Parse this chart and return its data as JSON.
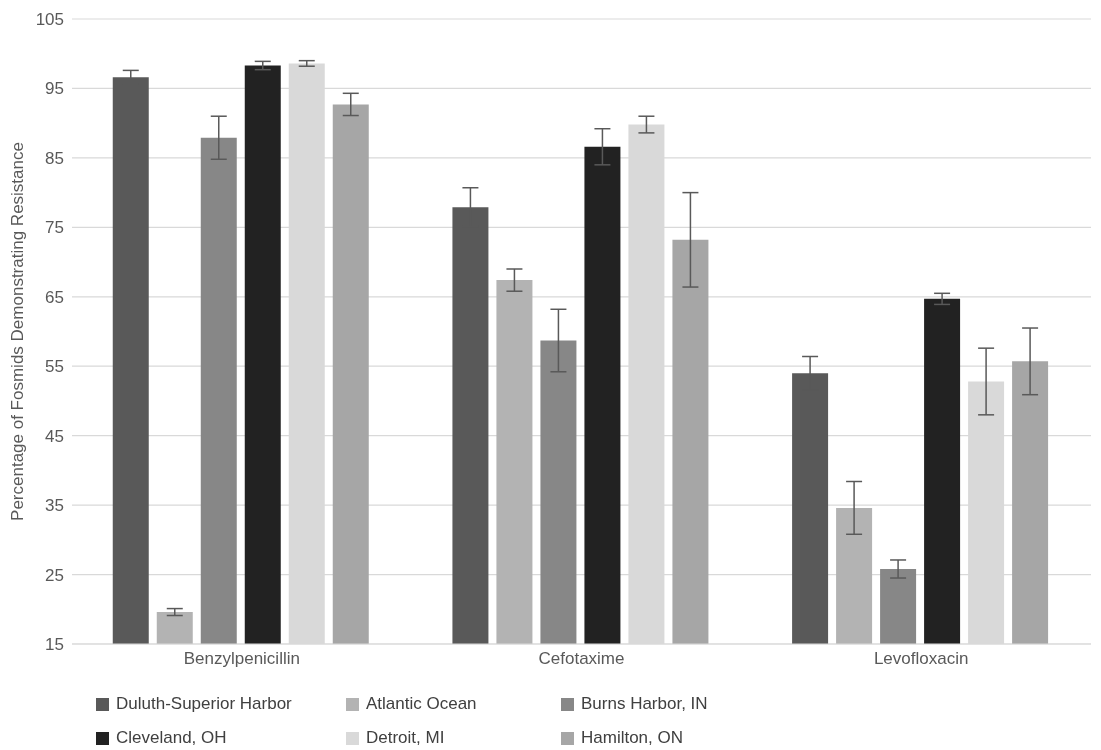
{
  "chart_data": {
    "type": "bar",
    "ylabel": "Percentage of Fosmids Demonstrating Resistance",
    "categories": [
      "Benzylpenicillin",
      "Cefotaxime",
      "Levofloxacin"
    ],
    "series": [
      {
        "name": "Duluth-Superior Harbor",
        "color": "#595959",
        "values": [
          96.6,
          77.9,
          54.0
        ],
        "errors": [
          1.0,
          2.8,
          2.4
        ]
      },
      {
        "name": "Atlantic Ocean",
        "color": "#b3b3b3",
        "values": [
          19.6,
          67.4,
          34.6
        ],
        "errors": [
          0.5,
          1.6,
          3.8
        ]
      },
      {
        "name": "Burns Harbor, IN",
        "color": "#878787",
        "values": [
          87.9,
          58.7,
          25.8
        ],
        "errors": [
          3.1,
          4.5,
          1.3
        ]
      },
      {
        "name": "Cleveland, OH",
        "color": "#222222",
        "values": [
          98.3,
          86.6,
          64.7
        ],
        "errors": [
          0.6,
          2.6,
          0.8
        ]
      },
      {
        "name": "Detroit, MI",
        "color": "#d9d9d9",
        "values": [
          98.6,
          89.8,
          52.8
        ],
        "errors": [
          0.4,
          1.2,
          4.8
        ]
      },
      {
        "name": "Hamilton, ON",
        "color": "#a6a6a6",
        "values": [
          92.7,
          73.2,
          55.7
        ],
        "errors": [
          1.6,
          6.8,
          4.8
        ]
      }
    ],
    "ylim": [
      15,
      105
    ],
    "yticks": [
      15,
      25,
      35,
      45,
      55,
      65,
      75,
      85,
      95,
      105
    ],
    "grid": "y",
    "legend": "bottom"
  }
}
